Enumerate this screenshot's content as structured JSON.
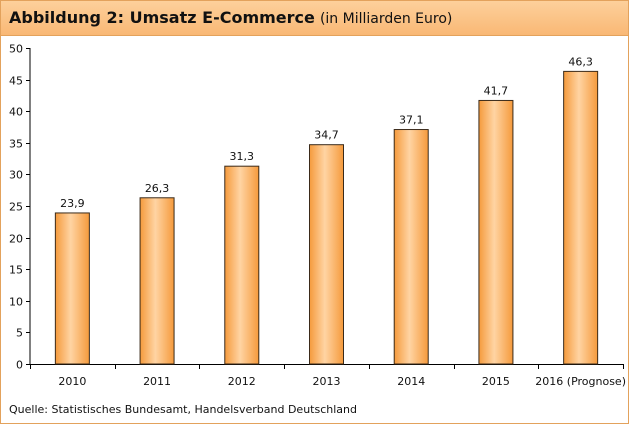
{
  "header": {
    "title": "Abbildung 2: Umsatz E-Commerce",
    "subtitle": "(in Milliarden Euro)"
  },
  "chart_data": {
    "type": "bar",
    "categories": [
      "2010",
      "2011",
      "2012",
      "2013",
      "2014",
      "2015",
      "2016 (Prognose)"
    ],
    "values": [
      23.9,
      26.3,
      31.3,
      34.7,
      37.1,
      41.7,
      46.3
    ],
    "value_labels": [
      "23,9",
      "26,3",
      "31,3",
      "34,7",
      "37,1",
      "41,7",
      "46,3"
    ],
    "title": "Abbildung 2: Umsatz E-Commerce",
    "subtitle": "(in Milliarden Euro)",
    "xlabel": "",
    "ylabel": "",
    "ylim": [
      0,
      50
    ],
    "yticks": [
      0,
      5,
      10,
      15,
      20,
      25,
      30,
      35,
      40,
      45,
      50
    ],
    "grid": false,
    "legend": "none",
    "colors": {
      "bar": "#f59a3c",
      "bar_light": "#ffd4a3",
      "bar_edge": "#3a2a1a"
    }
  },
  "footer": {
    "source": "Quelle: Statistisches Bundesamt, Handelsverband Deutschland"
  }
}
